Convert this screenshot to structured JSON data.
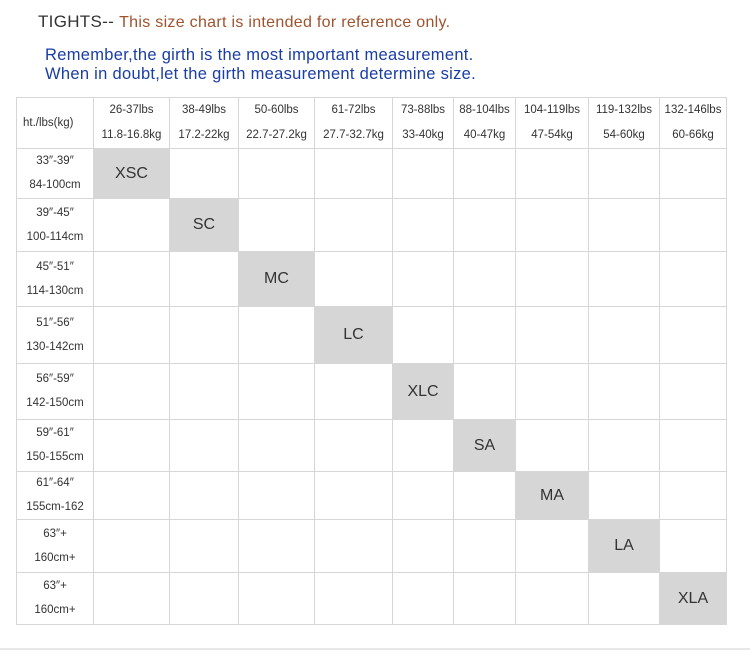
{
  "heading": {
    "main": "TIGHTS--",
    "note": "This size chart is intended for reference only."
  },
  "advice": {
    "line1": "Remember,the girth is the most important measurement.",
    "line2": "When in doubt,let the girth measurement determine size."
  },
  "table": {
    "corner_label": "ht./lbs(kg)",
    "columns": [
      {
        "lbs": "26-37lbs",
        "kg": "11.8-16.8kg"
      },
      {
        "lbs": "38-49lbs",
        "kg": "17.2-22kg"
      },
      {
        "lbs": "50-60lbs",
        "kg": "22.7-27.2kg"
      },
      {
        "lbs": "61-72lbs",
        "kg": "27.7-32.7kg"
      },
      {
        "lbs": "73-88lbs",
        "kg": "33-40kg"
      },
      {
        "lbs": "88-104lbs",
        "kg": "40-47kg"
      },
      {
        "lbs": "104-119lbs",
        "kg": "47-54kg"
      },
      {
        "lbs": "119-132lbs",
        "kg": "54-60kg"
      },
      {
        "lbs": "132-146lbs",
        "kg": "60-66kg"
      }
    ],
    "rows": [
      {
        "in": "33″-39″",
        "cm": "84-100cm",
        "size": "XSC",
        "col": 0
      },
      {
        "in": "39″-45″",
        "cm": "100-114cm",
        "size": "SC",
        "col": 1
      },
      {
        "in": "45″-51″",
        "cm": "114-130cm",
        "size": "MC",
        "col": 2
      },
      {
        "in": "51″-56″",
        "cm": "130-142cm",
        "size": "LC",
        "col": 3
      },
      {
        "in": "56″-59″",
        "cm": "142-150cm",
        "size": "XLC",
        "col": 4
      },
      {
        "in": "59″-61″",
        "cm": "150-155cm",
        "size": "SA",
        "col": 5
      },
      {
        "in": "61″-64″",
        "cm": "155cm-162",
        "size": "MA",
        "col": 6
      },
      {
        "in": "63″+",
        "cm": "160cm+",
        "size": "LA",
        "col": 7
      },
      {
        "in": "63″+",
        "cm": "160cm+",
        "size": "XLA",
        "col": 8
      }
    ]
  }
}
